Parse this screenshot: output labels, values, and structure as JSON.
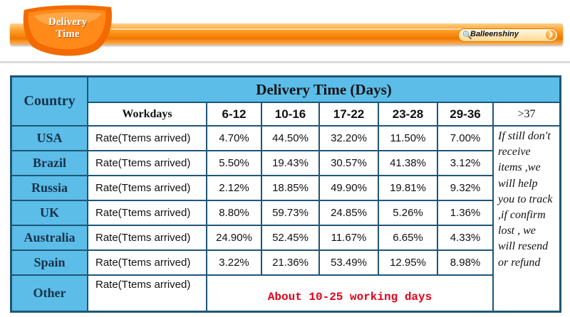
{
  "header": {
    "badge_line1": "Delivery",
    "badge_line2": "Time",
    "search_brand": "Balleenshiny",
    "colors": {
      "banner": "#f07800",
      "badge": "#f26a00",
      "table_header": "#5bbde8",
      "table_border": "#1f5678",
      "note_red": "#e0001a"
    },
    "icons": {
      "search": "search-icon",
      "go": "arrow-right-icon"
    }
  },
  "table": {
    "corner_label": "Country",
    "title": "Delivery Time (Days)",
    "workdays_label": "Workdays",
    "ranges": [
      "6-12",
      "10-16",
      "17-22",
      "23-28",
      "29-36"
    ],
    "last_range": ">37",
    "rows": [
      {
        "country": "USA",
        "metric": "Rate(Ttems arrived)",
        "values": [
          "4.70%",
          "44.50%",
          "32.20%",
          "11.50%",
          "7.00%"
        ]
      },
      {
        "country": "Brazil",
        "metric": "Rate(Ttems arrived)",
        "values": [
          "5.50%",
          "19.43%",
          "30.57%",
          "41.38%",
          "3.12%"
        ]
      },
      {
        "country": "Russia",
        "metric": "Rate(Ttems arrived)",
        "values": [
          "2.12%",
          "18.85%",
          "49.90%",
          "19.81%",
          "9.32%"
        ]
      },
      {
        "country": "UK",
        "metric": "Rate(Ttems arrived)",
        "values": [
          "8.80%",
          "59.73%",
          "24.85%",
          "5.26%",
          "1.36%"
        ]
      },
      {
        "country": "Australia",
        "metric": "Rate(Ttems arrived)",
        "values": [
          "24.90%",
          "52.45%",
          "11.67%",
          "6.65%",
          "4.33%"
        ]
      },
      {
        "country": "Spain",
        "metric": "Rate(Ttems arrived)",
        "values": [
          "3.22%",
          "21.36%",
          "53.49%",
          "12.95%",
          "8.98%"
        ]
      }
    ],
    "other": {
      "country": "Other",
      "metric": "Rate(Ttems arrived)",
      "message": "About 10-25 working days"
    },
    "note": "If still don't receive items ,we will help you to track ,if confirm lost , we will resend or refund"
  }
}
